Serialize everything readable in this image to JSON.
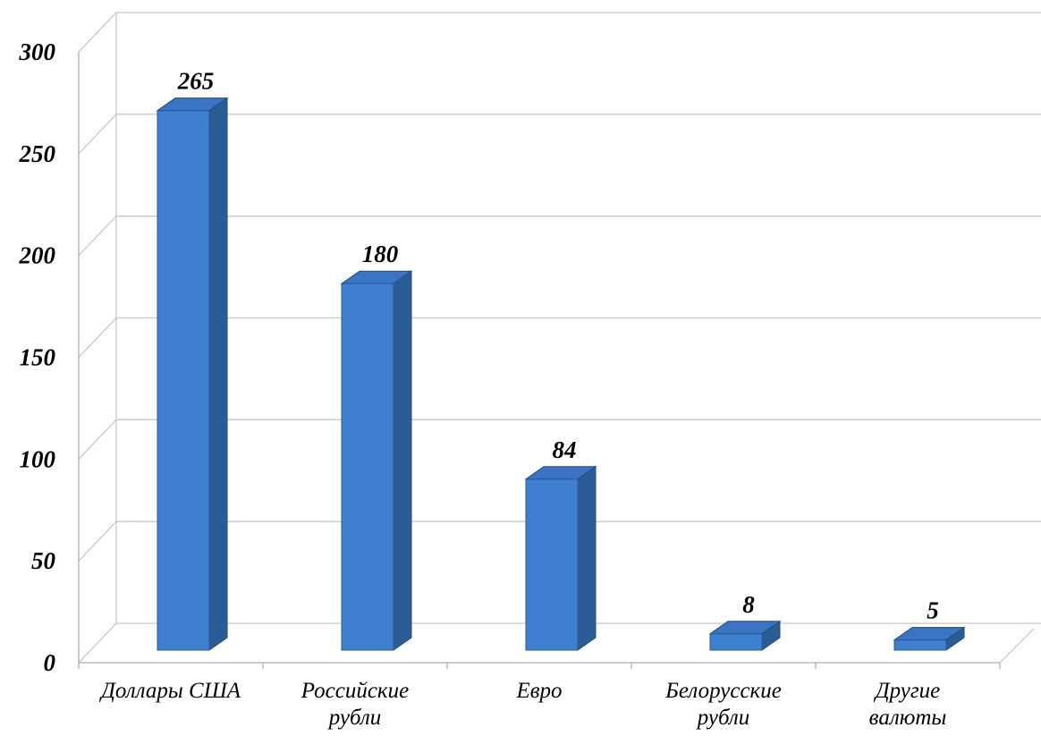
{
  "chart_data": {
    "type": "bar",
    "style": "3d-column",
    "categories": [
      [
        "Доллары США"
      ],
      [
        "Российские",
        "рубли"
      ],
      [
        "Евро"
      ],
      [
        "Белорусские",
        "рубли"
      ],
      [
        "Другие",
        "валюты"
      ]
    ],
    "values": [
      265,
      180,
      84,
      8,
      5
    ],
    "data_labels": [
      "265",
      "180",
      "84",
      "8",
      "5"
    ],
    "ylim": [
      0,
      300
    ],
    "yticks": [
      0,
      50,
      100,
      150,
      200,
      250,
      300
    ],
    "title": "",
    "xlabel": "",
    "ylabel": "",
    "grid": true,
    "legend": false,
    "colors": {
      "bar_front": "#3f7fd0",
      "bar_front_edge": "#2a5c9a",
      "bar_side": "#2b5c96",
      "bar_top": "#3a74c2",
      "grid": "#c8c8c8",
      "axis": "#b0b0b0"
    }
  }
}
